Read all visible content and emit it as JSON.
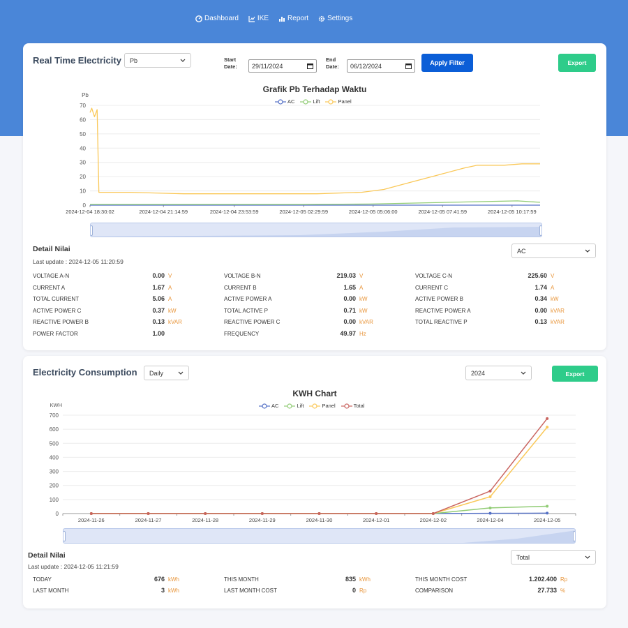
{
  "nav": [
    {
      "label": "Dashboard",
      "icon": "dashboard-icon"
    },
    {
      "label": "IKE",
      "icon": "chart-icon"
    },
    {
      "label": "Report",
      "icon": "report-icon"
    },
    {
      "label": "Settings",
      "icon": "settings-icon"
    }
  ],
  "realtime": {
    "title": "Real Time Electricity",
    "parameter": "Pb",
    "start_label_1": "Start",
    "start_label_2": "Date:",
    "start_date": "29/11/2024",
    "end_label_1": "End",
    "end_label_2": "Date:",
    "end_date": "06/12/2024",
    "apply_label": "Apply Filter",
    "export_label": "Export",
    "chart_title": "Grafik Pb Terhadap Waktu",
    "ylabel": "Pb",
    "legend": [
      "AC",
      "Lift",
      "Panel"
    ],
    "detail_title": "Detail Nilai",
    "last_update": "Last update : 2024-12-05 11:20:59",
    "device": "AC",
    "metrics": [
      {
        "label": "VOLTAGE A-N",
        "value": "0.00",
        "unit": "V"
      },
      {
        "label": "VOLTAGE B-N",
        "value": "219.03",
        "unit": "V"
      },
      {
        "label": "VOLTAGE C-N",
        "value": "225.60",
        "unit": "V"
      },
      {
        "label": "CURRENT A",
        "value": "1.67",
        "unit": "A"
      },
      {
        "label": "CURRENT B",
        "value": "1.65",
        "unit": "A"
      },
      {
        "label": "CURRENT C",
        "value": "1.74",
        "unit": "A"
      },
      {
        "label": "TOTAL CURRENT",
        "value": "5.06",
        "unit": "A"
      },
      {
        "label": "ACTIVE POWER A",
        "value": "0.00",
        "unit": "kW"
      },
      {
        "label": "ACTIVE POWER B",
        "value": "0.34",
        "unit": "kW"
      },
      {
        "label": "ACTIVE POWER C",
        "value": "0.37",
        "unit": "kW"
      },
      {
        "label": "TOTAL ACTIVE P",
        "value": "0.71",
        "unit": "kW"
      },
      {
        "label": "REACTIVE POWER A",
        "value": "0.00",
        "unit": "kVAR"
      },
      {
        "label": "REACTIVE POWER B",
        "value": "0.13",
        "unit": "kVAR"
      },
      {
        "label": "REACTIVE POWER C",
        "value": "0.00",
        "unit": "kVAR"
      },
      {
        "label": "TOTAL REACTIVE P",
        "value": "0.13",
        "unit": "kVAR"
      },
      {
        "label": "POWER FACTOR",
        "value": "1.00",
        "unit": ""
      },
      {
        "label": "FREQUENCY",
        "value": "49.97",
        "unit": "Hz"
      }
    ]
  },
  "consumption": {
    "title": "Electricity Consumption",
    "period": "Daily",
    "year": "2024",
    "export_label": "Export",
    "chart_title": "KWH Chart",
    "ylabel": "KWH",
    "legend": [
      "AC",
      "Lift",
      "Panel",
      "Total"
    ],
    "detail_title": "Detail Nilai",
    "last_update": "Last update : 2024-12-05 11:21:59",
    "device": "Total",
    "metrics": [
      {
        "label": "TODAY",
        "value": "676",
        "unit": "kWh"
      },
      {
        "label": "THIS MONTH",
        "value": "835",
        "unit": "kWh"
      },
      {
        "label": "THIS MONTH COST",
        "value": "1.202.400",
        "unit": "Rp"
      },
      {
        "label": "LAST MONTH",
        "value": "3",
        "unit": "kWh"
      },
      {
        "label": "LAST MONTH COST",
        "value": "0",
        "unit": "Rp"
      },
      {
        "label": "COMPARISON",
        "value": "27.733",
        "unit": "%"
      }
    ]
  },
  "colors": {
    "ac": "#5470c6",
    "lift": "#91cc75",
    "panel": "#fac858",
    "total": "#c9645f",
    "accent": "#4a86d8"
  },
  "chart_data": [
    {
      "type": "line",
      "title": "Grafik Pb Terhadap Waktu",
      "ylabel": "Pb",
      "ylim": [
        0,
        70
      ],
      "yticks": [
        0,
        10,
        20,
        30,
        40,
        50,
        60,
        70
      ],
      "x_ticks": [
        "2024-12-04 18:30:02",
        "2024-12-04 21:14:59",
        "2024-12-04 23:53:59",
        "2024-12-05 02:29:59",
        "2024-12-05 05:06:00",
        "2024-12-05 07:41:59",
        "2024-12-05 10:17:59"
      ],
      "x_range": [
        "2024-12-04 18:30:02",
        "2024-12-05 11:20:59"
      ],
      "series": [
        {
          "name": "AC",
          "color": "#5470c6",
          "points": [
            [
              "2024-12-04 18:30:02",
              0
            ],
            [
              "2024-12-05 11:20:59",
              0
            ]
          ]
        },
        {
          "name": "Lift",
          "color": "#91cc75",
          "points": [
            [
              "2024-12-04 18:30:02",
              0.5
            ],
            [
              "2024-12-05 02:30:00",
              0.5
            ],
            [
              "2024-12-05 05:00:00",
              0.8
            ],
            [
              "2024-12-05 08:00:00",
              2
            ],
            [
              "2024-12-05 10:30:00",
              3
            ],
            [
              "2024-12-05 11:20:59",
              2
            ]
          ]
        },
        {
          "name": "Panel",
          "color": "#fac858",
          "points": [
            [
              "2024-12-04 18:30:02",
              65
            ],
            [
              "2024-12-04 18:34:00",
              68
            ],
            [
              "2024-12-04 18:40:00",
              62
            ],
            [
              "2024-12-04 18:46:00",
              67
            ],
            [
              "2024-12-04 18:50:00",
              9
            ],
            [
              "2024-12-04 20:00:00",
              9
            ],
            [
              "2024-12-04 22:00:00",
              8
            ],
            [
              "2024-12-05 00:00:00",
              8
            ],
            [
              "2024-12-05 03:00:00",
              8
            ],
            [
              "2024-12-05 04:40:00",
              9
            ],
            [
              "2024-12-05 05:30:00",
              11
            ],
            [
              "2024-12-05 06:30:00",
              16
            ],
            [
              "2024-12-05 07:30:00",
              21
            ],
            [
              "2024-12-05 08:30:00",
              26
            ],
            [
              "2024-12-05 09:00:00",
              28
            ],
            [
              "2024-12-05 10:00:00",
              28
            ],
            [
              "2024-12-05 10:40:00",
              29
            ],
            [
              "2024-12-05 11:20:59",
              29
            ]
          ]
        }
      ]
    },
    {
      "type": "line",
      "title": "KWH Chart",
      "ylabel": "KWH",
      "ylim": [
        0,
        700
      ],
      "yticks": [
        0,
        100,
        200,
        300,
        400,
        500,
        600,
        700
      ],
      "categories": [
        "2024-11-26",
        "2024-11-27",
        "2024-11-28",
        "2024-11-29",
        "2024-11-30",
        "2024-12-01",
        "2024-12-02",
        "2024-12-04",
        "2024-12-05"
      ],
      "series": [
        {
          "name": "AC",
          "color": "#5470c6",
          "values": [
            0,
            0,
            0,
            0,
            0,
            0,
            0,
            2,
            3
          ]
        },
        {
          "name": "Lift",
          "color": "#91cc75",
          "values": [
            0,
            0,
            0,
            0,
            0,
            0,
            0,
            40,
            52
          ]
        },
        {
          "name": "Panel",
          "color": "#fac858",
          "values": [
            0,
            0,
            0,
            0,
            0,
            0,
            0,
            120,
            615
          ]
        },
        {
          "name": "Total",
          "color": "#c9645f",
          "values": [
            0,
            0,
            0,
            0,
            0,
            0,
            0,
            160,
            676
          ]
        }
      ]
    }
  ]
}
